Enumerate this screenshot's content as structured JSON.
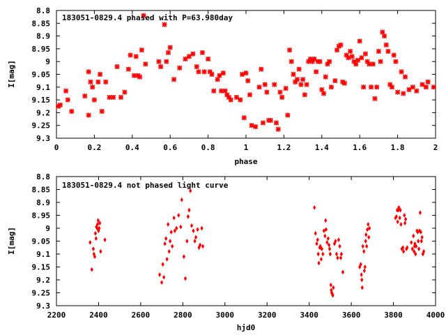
{
  "chart_data": [
    {
      "type": "scatter",
      "title": "183051-0829.4 phased with P=63.980day",
      "xlabel": "phase",
      "ylabel": "I[mag]",
      "xlim": [
        0,
        2
      ],
      "ylim": [
        8.8,
        9.3
      ],
      "y_inverted": true,
      "xticks": [
        "0",
        "0.2",
        "0.4",
        "0.6",
        "0.8",
        "1",
        "1.2",
        "1.4",
        "1.6",
        "1.8",
        "2"
      ],
      "yticks": [
        "8.8",
        "8.85",
        "8.9",
        "8.95",
        "9",
        "9.05",
        "9.1",
        "9.15",
        "9.2",
        "9.25",
        "9.3"
      ],
      "marker_color": "#ff0000",
      "marker": "star",
      "points": [
        [
          0.01,
          9.175
        ],
        [
          0.02,
          9.17
        ],
        [
          0.05,
          9.115
        ],
        [
          0.06,
          9.15
        ],
        [
          0.08,
          9.195
        ],
        [
          0.15,
          9.135
        ],
        [
          0.17,
          9.21
        ],
        [
          0.17,
          9.04
        ],
        [
          0.18,
          9.08
        ],
        [
          0.19,
          9.1
        ],
        [
          0.2,
          9.15
        ],
        [
          0.22,
          9.08
        ],
        [
          0.23,
          9.05
        ],
        [
          0.24,
          9.195
        ],
        [
          0.26,
          9.08
        ],
        [
          0.28,
          9.14
        ],
        [
          0.3,
          9.14
        ],
        [
          0.32,
          9.02
        ],
        [
          0.34,
          9.14
        ],
        [
          0.36,
          9.12
        ],
        [
          0.38,
          9.03
        ],
        [
          0.39,
          8.975
        ],
        [
          0.41,
          9.055
        ],
        [
          0.42,
          8.98
        ],
        [
          0.43,
          9.055
        ],
        [
          0.44,
          9.06
        ],
        [
          0.45,
          8.955
        ],
        [
          0.46,
          8.82
        ],
        [
          0.47,
          9.01
        ],
        [
          0.54,
          9.0
        ],
        [
          0.55,
          9.02
        ],
        [
          0.57,
          8.855
        ],
        [
          0.58,
          9.0
        ],
        [
          0.59,
          8.965
        ],
        [
          0.6,
          8.945
        ],
        [
          0.62,
          9.07
        ],
        [
          0.65,
          9.025
        ],
        [
          0.68,
          8.99
        ],
        [
          0.7,
          8.98
        ],
        [
          0.72,
          8.97
        ],
        [
          0.74,
          9.02
        ],
        [
          0.75,
          9.04
        ],
        [
          0.77,
          8.965
        ],
        [
          0.78,
          9.04
        ],
        [
          0.8,
          8.99
        ],
        [
          0.81,
          9.04
        ],
        [
          0.82,
          9.05
        ],
        [
          0.83,
          9.115
        ],
        [
          0.85,
          9.07
        ],
        [
          0.86,
          9.055
        ],
        [
          0.87,
          9.115
        ],
        [
          0.88,
          9.045
        ],
        [
          0.89,
          9.115
        ],
        [
          0.9,
          9.13
        ],
        [
          0.91,
          9.14
        ],
        [
          0.92,
          9.15
        ],
        [
          0.95,
          9.14
        ],
        [
          0.97,
          9.15
        ],
        [
          0.98,
          9.05
        ],
        [
          0.99,
          9.22
        ],
        [
          1.0,
          9.045
        ],
        [
          1.01,
          9.075
        ],
        [
          1.02,
          9.13
        ],
        [
          1.03,
          9.25
        ],
        [
          1.05,
          9.255
        ],
        [
          1.07,
          9.1
        ],
        [
          1.08,
          9.03
        ],
        [
          1.09,
          9.24
        ],
        [
          1.1,
          9.09
        ],
        [
          1.11,
          9.12
        ],
        [
          1.12,
          9.23
        ],
        [
          1.13,
          9.23
        ],
        [
          1.15,
          9.09
        ],
        [
          1.16,
          9.24
        ],
        [
          1.17,
          9.265
        ],
        [
          1.18,
          9.12
        ],
        [
          1.19,
          9.14
        ],
        [
          1.21,
          9.105
        ],
        [
          1.22,
          9.21
        ],
        [
          1.23,
          8.955
        ],
        [
          1.24,
          9.0
        ],
        [
          1.25,
          9.05
        ],
        [
          1.26,
          9.08
        ],
        [
          1.27,
          9.07
        ],
        [
          1.28,
          9.03
        ],
        [
          1.29,
          9.09
        ],
        [
          1.3,
          9.07
        ],
        [
          1.31,
          9.13
        ],
        [
          1.32,
          9.09
        ],
        [
          1.33,
          9.0
        ],
        [
          1.34,
          8.99
        ],
        [
          1.35,
          9.0
        ],
        [
          1.36,
          8.99
        ],
        [
          1.37,
          9.04
        ],
        [
          1.38,
          9.0
        ],
        [
          1.39,
          9.0
        ],
        [
          1.4,
          9.11
        ],
        [
          1.41,
          9.125
        ],
        [
          1.42,
          9.06
        ],
        [
          1.43,
          9.01
        ],
        [
          1.44,
          9.0
        ],
        [
          1.45,
          9.1
        ],
        [
          1.47,
          9.075
        ],
        [
          1.48,
          8.955
        ],
        [
          1.49,
          8.94
        ],
        [
          1.5,
          8.935
        ],
        [
          1.51,
          9.08
        ],
        [
          1.52,
          9.085
        ],
        [
          1.53,
          8.975
        ],
        [
          1.54,
          8.985
        ],
        [
          1.55,
          8.96
        ],
        [
          1.56,
          8.98
        ],
        [
          1.57,
          9.0
        ],
        [
          1.58,
          9.01
        ],
        [
          1.59,
          8.995
        ],
        [
          1.6,
          8.92
        ],
        [
          1.61,
          8.985
        ],
        [
          1.62,
          9.1
        ],
        [
          1.63,
          8.97
        ],
        [
          1.64,
          9.0
        ],
        [
          1.65,
          9.01
        ],
        [
          1.66,
          9.1
        ],
        [
          1.67,
          9.01
        ],
        [
          1.68,
          9.145
        ],
        [
          1.69,
          9.1
        ],
        [
          1.7,
          8.96
        ],
        [
          1.71,
          9.0
        ],
        [
          1.72,
          8.885
        ],
        [
          1.73,
          8.9
        ],
        [
          1.74,
          8.935
        ],
        [
          1.75,
          8.96
        ],
        [
          1.76,
          9.09
        ],
        [
          1.77,
          9.1
        ],
        [
          1.78,
          8.975
        ],
        [
          1.79,
          9.0
        ],
        [
          1.8,
          9.12
        ],
        [
          1.82,
          9.04
        ],
        [
          1.83,
          9.125
        ],
        [
          1.84,
          9.06
        ],
        [
          1.86,
          9.11
        ],
        [
          1.88,
          9.1
        ],
        [
          1.9,
          9.115
        ],
        [
          1.93,
          9.09
        ],
        [
          1.95,
          9.1
        ],
        [
          1.96,
          9.08
        ],
        [
          1.99,
          9.1
        ]
      ]
    },
    {
      "type": "scatter",
      "title": "183051-0829.4 not phased light curve",
      "xlabel": "hjd0",
      "ylabel": "I[mag]",
      "xlim": [
        2200,
        4000
      ],
      "ylim": [
        8.8,
        9.3
      ],
      "y_inverted": true,
      "xticks": [
        "2200",
        "2400",
        "2600",
        "2800",
        "3000",
        "3200",
        "3400",
        "3600",
        "3800",
        "4000"
      ],
      "yticks": [
        "8.8",
        "8.85",
        "8.9",
        "8.95",
        "9",
        "9.05",
        "9.1",
        "9.15",
        "9.2",
        "9.25",
        "9.3"
      ],
      "marker_color": "#ff0000",
      "marker": "diamond",
      "points": [
        [
          2360,
          9.055
        ],
        [
          2368,
          9.16
        ],
        [
          2375,
          9.08
        ],
        [
          2378,
          9.1
        ],
        [
          2382,
          9.11
        ],
        [
          2385,
          9.02
        ],
        [
          2388,
          9.04
        ],
        [
          2390,
          8.995
        ],
        [
          2393,
          9.0
        ],
        [
          2395,
          8.985
        ],
        [
          2398,
          8.97
        ],
        [
          2400,
          9.01
        ],
        [
          2403,
          9.0
        ],
        [
          2406,
          8.98
        ],
        [
          2410,
          9.09
        ],
        [
          2430,
          9.045
        ],
        [
          2690,
          9.18
        ],
        [
          2700,
          9.21
        ],
        [
          2705,
          9.14
        ],
        [
          2710,
          9.19
        ],
        [
          2715,
          9.06
        ],
        [
          2720,
          9.04
        ],
        [
          2725,
          9.12
        ],
        [
          2730,
          8.985
        ],
        [
          2735,
          9.09
        ],
        [
          2740,
          9.05
        ],
        [
          2745,
          9.015
        ],
        [
          2750,
          9.07
        ],
        [
          2758,
          8.96
        ],
        [
          2762,
          9.01
        ],
        [
          2770,
          9.0
        ],
        [
          2780,
          8.95
        ],
        [
          2790,
          8.995
        ],
        [
          2795,
          8.89
        ],
        [
          2805,
          9.11
        ],
        [
          2812,
          9.195
        ],
        [
          2820,
          9.05
        ],
        [
          2825,
          8.955
        ],
        [
          2830,
          8.93
        ],
        [
          2836,
          8.855
        ],
        [
          2842,
          8.99
        ],
        [
          2850,
          9.01
        ],
        [
          2857,
          9.05
        ],
        [
          2862,
          9.035
        ],
        [
          2870,
          9.005
        ],
        [
          2877,
          9.075
        ],
        [
          2882,
          9.065
        ],
        [
          2890,
          9.0
        ],
        [
          2895,
          9.07
        ],
        [
          3425,
          8.92
        ],
        [
          3430,
          9.02
        ],
        [
          3436,
          9.06
        ],
        [
          3440,
          9.045
        ],
        [
          3443,
          9.1
        ],
        [
          3446,
          9.135
        ],
        [
          3450,
          9.075
        ],
        [
          3453,
          9.07
        ],
        [
          3457,
          9.12
        ],
        [
          3460,
          9.08
        ],
        [
          3465,
          9.1
        ],
        [
          3470,
          9.01
        ],
        [
          3475,
          9.03
        ],
        [
          3478,
          8.97
        ],
        [
          3480,
          9.005
        ],
        [
          3485,
          9.055
        ],
        [
          3490,
          9.04
        ],
        [
          3494,
          9.065
        ],
        [
          3497,
          9.08
        ],
        [
          3500,
          9.1
        ],
        [
          3503,
          9.22
        ],
        [
          3505,
          9.24
        ],
        [
          3507,
          9.25
        ],
        [
          3510,
          9.255
        ],
        [
          3512,
          9.26
        ],
        [
          3515,
          9.23
        ],
        [
          3520,
          9.06
        ],
        [
          3525,
          9.05
        ],
        [
          3530,
          9.1
        ],
        [
          3535,
          9.115
        ],
        [
          3540,
          9.045
        ],
        [
          3545,
          9.07
        ],
        [
          3550,
          9.115
        ],
        [
          3553,
          9.1
        ],
        [
          3560,
          9.17
        ],
        [
          3640,
          9.15
        ],
        [
          3645,
          9.14
        ],
        [
          3648,
          9.18
        ],
        [
          3650,
          9.2
        ],
        [
          3652,
          9.23
        ],
        [
          3655,
          9.07
        ],
        [
          3660,
          9.09
        ],
        [
          3662,
          9.165
        ],
        [
          3665,
          9.15
        ],
        [
          3668,
          9.05
        ],
        [
          3670,
          9.025
        ],
        [
          3673,
          9.07
        ],
        [
          3676,
          9.005
        ],
        [
          3680,
          8.985
        ],
        [
          3683,
          9.035
        ],
        [
          3686,
          9.0
        ],
        [
          3810,
          8.96
        ],
        [
          3814,
          8.955
        ],
        [
          3818,
          8.93
        ],
        [
          3820,
          8.975
        ],
        [
          3823,
          8.93
        ],
        [
          3826,
          8.92
        ],
        [
          3830,
          8.96
        ],
        [
          3833,
          8.93
        ],
        [
          3836,
          8.985
        ],
        [
          3840,
          9.08
        ],
        [
          3845,
          9.075
        ],
        [
          3848,
          9.09
        ],
        [
          3852,
          8.95
        ],
        [
          3855,
          8.98
        ],
        [
          3858,
          8.965
        ],
        [
          3862,
          9.08
        ],
        [
          3865,
          9.075
        ],
        [
          3885,
          9.055
        ],
        [
          3890,
          9.08
        ],
        [
          3895,
          9.03
        ],
        [
          3898,
          9.09
        ],
        [
          3900,
          9.07
        ],
        [
          3902,
          9.06
        ],
        [
          3905,
          9.1
        ],
        [
          3908,
          9.07
        ],
        [
          3912,
          9.01
        ],
        [
          3915,
          9.015
        ],
        [
          3918,
          9.05
        ],
        [
          3921,
          9.08
        ],
        [
          3924,
          9.01
        ],
        [
          3927,
          8.94
        ],
        [
          3930,
          9.015
        ],
        [
          3933,
          9.05
        ],
        [
          3936,
          9.035
        ],
        [
          3940,
          9.1
        ],
        [
          3944,
          9.09
        ]
      ]
    }
  ]
}
